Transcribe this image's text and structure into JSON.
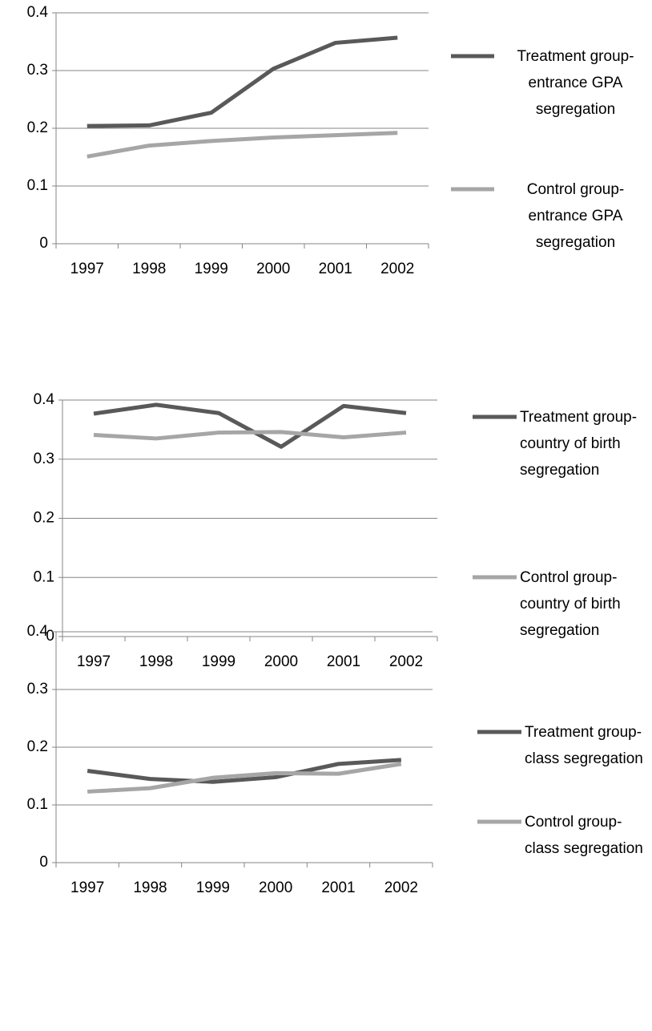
{
  "chart_data": [
    {
      "type": "line",
      "categories": [
        "1997",
        "1998",
        "1999",
        "2000",
        "2001",
        "2002"
      ],
      "ylim": [
        0,
        0.4
      ],
      "yticks": [
        0,
        0.1,
        0.2,
        0.3,
        0.4
      ],
      "grid": true,
      "legend": "right",
      "series": [
        {
          "name": "Treatment group-entrance GPA segregation",
          "color": "#595959",
          "values": [
            0.204,
            0.205,
            0.227,
            0.303,
            0.348,
            0.357
          ]
        },
        {
          "name": "Control group-entrance GPA segregation",
          "color": "#a6a6a6",
          "values": [
            0.151,
            0.17,
            0.178,
            0.184,
            0.188,
            0.192
          ]
        }
      ]
    },
    {
      "type": "line",
      "categories": [
        "1997",
        "1998",
        "1999",
        "2000",
        "2001",
        "2002"
      ],
      "ylim": [
        0,
        0.4
      ],
      "yticks": [
        0,
        0.1,
        0.2,
        0.3,
        0.4
      ],
      "grid": true,
      "legend": "right",
      "series": [
        {
          "name": "Treatment group-country of birth segregation",
          "color": "#595959",
          "values": [
            0.377,
            0.392,
            0.378,
            0.321,
            0.39,
            0.378
          ]
        },
        {
          "name": "Control group-country of birth segregation",
          "color": "#a6a6a6",
          "values": [
            0.341,
            0.335,
            0.345,
            0.346,
            0.337,
            0.345
          ]
        }
      ]
    },
    {
      "type": "line",
      "categories": [
        "1997",
        "1998",
        "1999",
        "2000",
        "2001",
        "2002"
      ],
      "ylim": [
        0,
        0.4
      ],
      "yticks": [
        0,
        0.1,
        0.2,
        0.3,
        0.4
      ],
      "grid": true,
      "legend": "right",
      "series": [
        {
          "name": "Treatment group-class segregation",
          "color": "#595959",
          "values": [
            0.159,
            0.145,
            0.14,
            0.148,
            0.171,
            0.178
          ]
        },
        {
          "name": "Control group-class segregation",
          "color": "#a6a6a6",
          "values": [
            0.123,
            0.129,
            0.147,
            0.155,
            0.154,
            0.171
          ]
        }
      ]
    }
  ]
}
